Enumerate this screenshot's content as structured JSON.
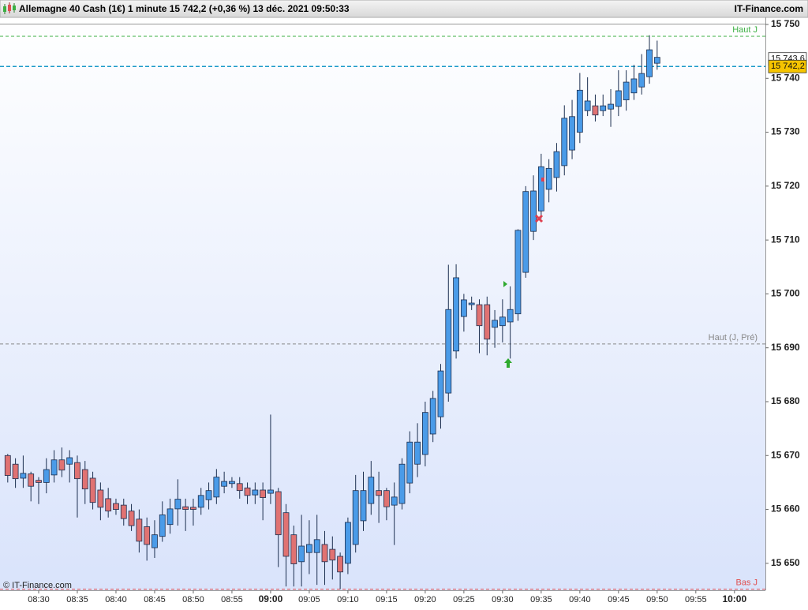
{
  "header": {
    "title": "Allemagne 40 Cash (1€) 1 minute 15 742,2 (+0,36 %) 13 déc. 2021 09:50:33",
    "site": "IT-Finance.com"
  },
  "chart_data": {
    "type": "candlestick",
    "x": [
      "08:26",
      "08:27",
      "08:28",
      "08:29",
      "08:30",
      "08:31",
      "08:32",
      "08:33",
      "08:34",
      "08:35",
      "08:36",
      "08:37",
      "08:38",
      "08:39",
      "08:40",
      "08:41",
      "08:42",
      "08:43",
      "08:44",
      "08:45",
      "08:46",
      "08:47",
      "08:48",
      "08:49",
      "08:50",
      "08:51",
      "08:52",
      "08:53",
      "08:54",
      "08:55",
      "08:56",
      "08:57",
      "08:58",
      "08:59",
      "09:00",
      "09:01",
      "09:02",
      "09:03",
      "09:04",
      "09:05",
      "09:06",
      "09:07",
      "09:08",
      "09:09",
      "09:10",
      "09:11",
      "09:12",
      "09:13",
      "09:14",
      "09:15",
      "09:16",
      "09:17",
      "09:18",
      "09:19",
      "09:20",
      "09:21",
      "09:22",
      "09:23",
      "09:24",
      "09:25",
      "09:26",
      "09:27",
      "09:28",
      "09:29",
      "09:30",
      "09:31",
      "09:32",
      "09:33",
      "09:34",
      "09:35",
      "09:36",
      "09:37",
      "09:38",
      "09:39",
      "09:40",
      "09:41",
      "09:42",
      "09:43",
      "09:44",
      "09:45",
      "09:46",
      "09:47",
      "09:48",
      "09:49",
      "09:50"
    ],
    "open": [
      15670,
      15668.4,
      15665.8,
      15666.6,
      15665.4,
      15665,
      15666.4,
      15669.2,
      15668.4,
      15668.7,
      15667.4,
      15665.8,
      15663.6,
      15662,
      15661.1,
      15660.8,
      15659.7,
      15658.2,
      15656.8,
      15652.9,
      15655,
      15657.2,
      15660.1,
      15660.5,
      15660.4,
      15660.4,
      15661.8,
      15662.3,
      15664.3,
      15664.8,
      15664.8,
      15664,
      15662.7,
      15663.6,
      15663,
      15663.3,
      15659.4,
      15655.3,
      15650.3,
      15652,
      15652,
      15653.5,
      15652.6,
      15651.3,
      15650,
      15653.5,
      15657.9,
      15661.1,
      15663.5,
      15663.5,
      15660.8,
      15661.1,
      15664.9,
      15668.4,
      15670.2,
      15674,
      15677.2,
      15681.6,
      15689.4,
      15695.8,
      15698,
      15698,
      15698,
      15693.8,
      15694.1,
      15694.8,
      15696.3,
      15704,
      15711.6,
      15715.4,
      15719.4,
      15721.6,
      15723.8,
      15726.7,
      15730,
      15734,
      15734.9,
      15734,
      15734.3,
      15734.8,
      15736,
      15737.3,
      15738.4,
      15740.3,
      15742.8
    ],
    "high": [
      15670.3,
      15669.5,
      15670,
      15667,
      15666,
      15669.5,
      15671,
      15671.5,
      15671,
      15670,
      15669,
      15667,
      15665,
      15664,
      15662,
      15662,
      15661,
      15660,
      15658.5,
      15658,
      15661.5,
      15662,
      15665.6,
      15662,
      15662,
      15664,
      15665,
      15667.5,
      15667,
      15666,
      15666,
      15665,
      15665,
      15665,
      15677.6,
      15664,
      15661,
      15657,
      15659,
      15658,
      15659,
      15656,
      15655,
      15652,
      15658.5,
      15666.4,
      15667,
      15669,
      15667,
      15664,
      15665,
      15669.5,
      15674.5,
      15676,
      15680,
      15682,
      15687,
      15705.4,
      15705.5,
      15700,
      15699.5,
      15699,
      15699.5,
      15697,
      15699,
      15701.4,
      15712,
      15720,
      15722,
      15726,
      15725,
      15728,
      15735,
      15736,
      15741,
      15740.2,
      15737,
      15737,
      15738,
      15741.5,
      15741.5,
      15742.5,
      15744.5,
      15748,
      15747
    ],
    "low": [
      15665,
      15664,
      15664,
      15661.5,
      15661,
      15663,
      15665,
      15666,
      15665,
      15658.5,
      15661,
      15660,
      15658,
      15658.5,
      15659,
      15657,
      15656,
      15652,
      15650.5,
      15651,
      15654,
      15655.5,
      15657,
      15656,
      15657,
      15659,
      15660,
      15661,
      15663,
      15664,
      15662,
      15661,
      15661,
      15658,
      15661,
      15649.3,
      15645.7,
      15645.7,
      15645.7,
      15648,
      15646,
      15646,
      15647,
      15645.2,
      15648,
      15652,
      15656,
      15659,
      15657.5,
      15658,
      15653.4,
      15660,
      15663,
      15666,
      15668,
      15672.5,
      15675,
      15680,
      15688,
      15693,
      15697,
      15689,
      15688.6,
      15690,
      15691,
      15688,
      15695,
      15703,
      15710,
      15714,
      15717,
      15719,
      15722,
      15725,
      15728,
      15733,
      15732,
      15733,
      15731,
      15733,
      15734,
      15736,
      15737,
      15739,
      15741.6
    ],
    "close": [
      15666.3,
      15665.7,
      15666.7,
      15664.3,
      15665,
      15667.4,
      15669.2,
      15667.3,
      15669.6,
      15665.7,
      15663.8,
      15661.3,
      15660.4,
      15659.7,
      15660,
      15658.3,
      15657,
      15654.1,
      15653.5,
      15655.3,
      15659,
      15660.1,
      15661.9,
      15660,
      15660,
      15662.6,
      15663.5,
      15666,
      15665.2,
      15665.2,
      15663.5,
      15662.6,
      15663.6,
      15662.2,
      15663.6,
      15655.3,
      15651.3,
      15649.9,
      15653.2,
      15653.5,
      15654.4,
      15650.3,
      15650.6,
      15648.4,
      15657.6,
      15663.5,
      15663.5,
      15666,
      15662.6,
      15660.5,
      15662.3,
      15668.4,
      15672.5,
      15672.5,
      15678,
      15680.6,
      15685.7,
      15697.1,
      15703,
      15698.9,
      15698.3,
      15694.1,
      15691.6,
      15695.1,
      15695.7,
      15697.1,
      15711.8,
      15719,
      15719.1,
      15723.6,
      15723.3,
      15726.4,
      15732.6,
      15732.9,
      15737.8,
      15735.8,
      15733.2,
      15734.9,
      15735.2,
      15737.7,
      15739.3,
      15739.9,
      15740.9,
      15745.3,
      15743.9
    ],
    "up_color": "#4a9be8",
    "down_color": "#e07272",
    "outline_color": "#1c2f50",
    "xlim": [
      "08:25",
      "10:04"
    ],
    "xticks": [
      "08:30",
      "08:35",
      "08:40",
      "08:45",
      "08:50",
      "08:55",
      "09:00",
      "09:05",
      "09:10",
      "09:15",
      "09:20",
      "09:25",
      "09:30",
      "09:35",
      "09:40",
      "09:45",
      "09:50",
      "09:55",
      "10:00"
    ],
    "ylim": [
      15645,
      15750
    ],
    "yticks": [
      {
        "value": 15650,
        "label": "15 650"
      },
      {
        "value": 15660,
        "label": "15 660"
      },
      {
        "value": 15670,
        "label": "15 670"
      },
      {
        "value": 15680,
        "label": "15 680"
      },
      {
        "value": 15690,
        "label": "15 690"
      },
      {
        "value": 15700,
        "label": "15 700"
      },
      {
        "value": 15710,
        "label": "15 710"
      },
      {
        "value": 15720,
        "label": "15 720"
      },
      {
        "value": 15730,
        "label": "15 730"
      },
      {
        "value": 15740,
        "label": "15 740"
      },
      {
        "value": 15750,
        "label": "15 750"
      }
    ],
    "levels": [
      {
        "name": "Haut J",
        "value": 15747.8,
        "color": "#3cb043"
      },
      {
        "name": "Haut (J, Pré)",
        "value": 15690.7,
        "color": "#888888"
      },
      {
        "name": "Bas J",
        "value": 15645.2,
        "color": "#e05050"
      }
    ],
    "price_labels": [
      {
        "value": 15743.6,
        "label": "15 743,6",
        "color": "#ffffff"
      },
      {
        "value": 15742.2,
        "label": "15 742,2",
        "color": "#f5c400"
      }
    ],
    "last_line_color": "#1a9ac8",
    "watermark": "© IT-Finance.com"
  }
}
